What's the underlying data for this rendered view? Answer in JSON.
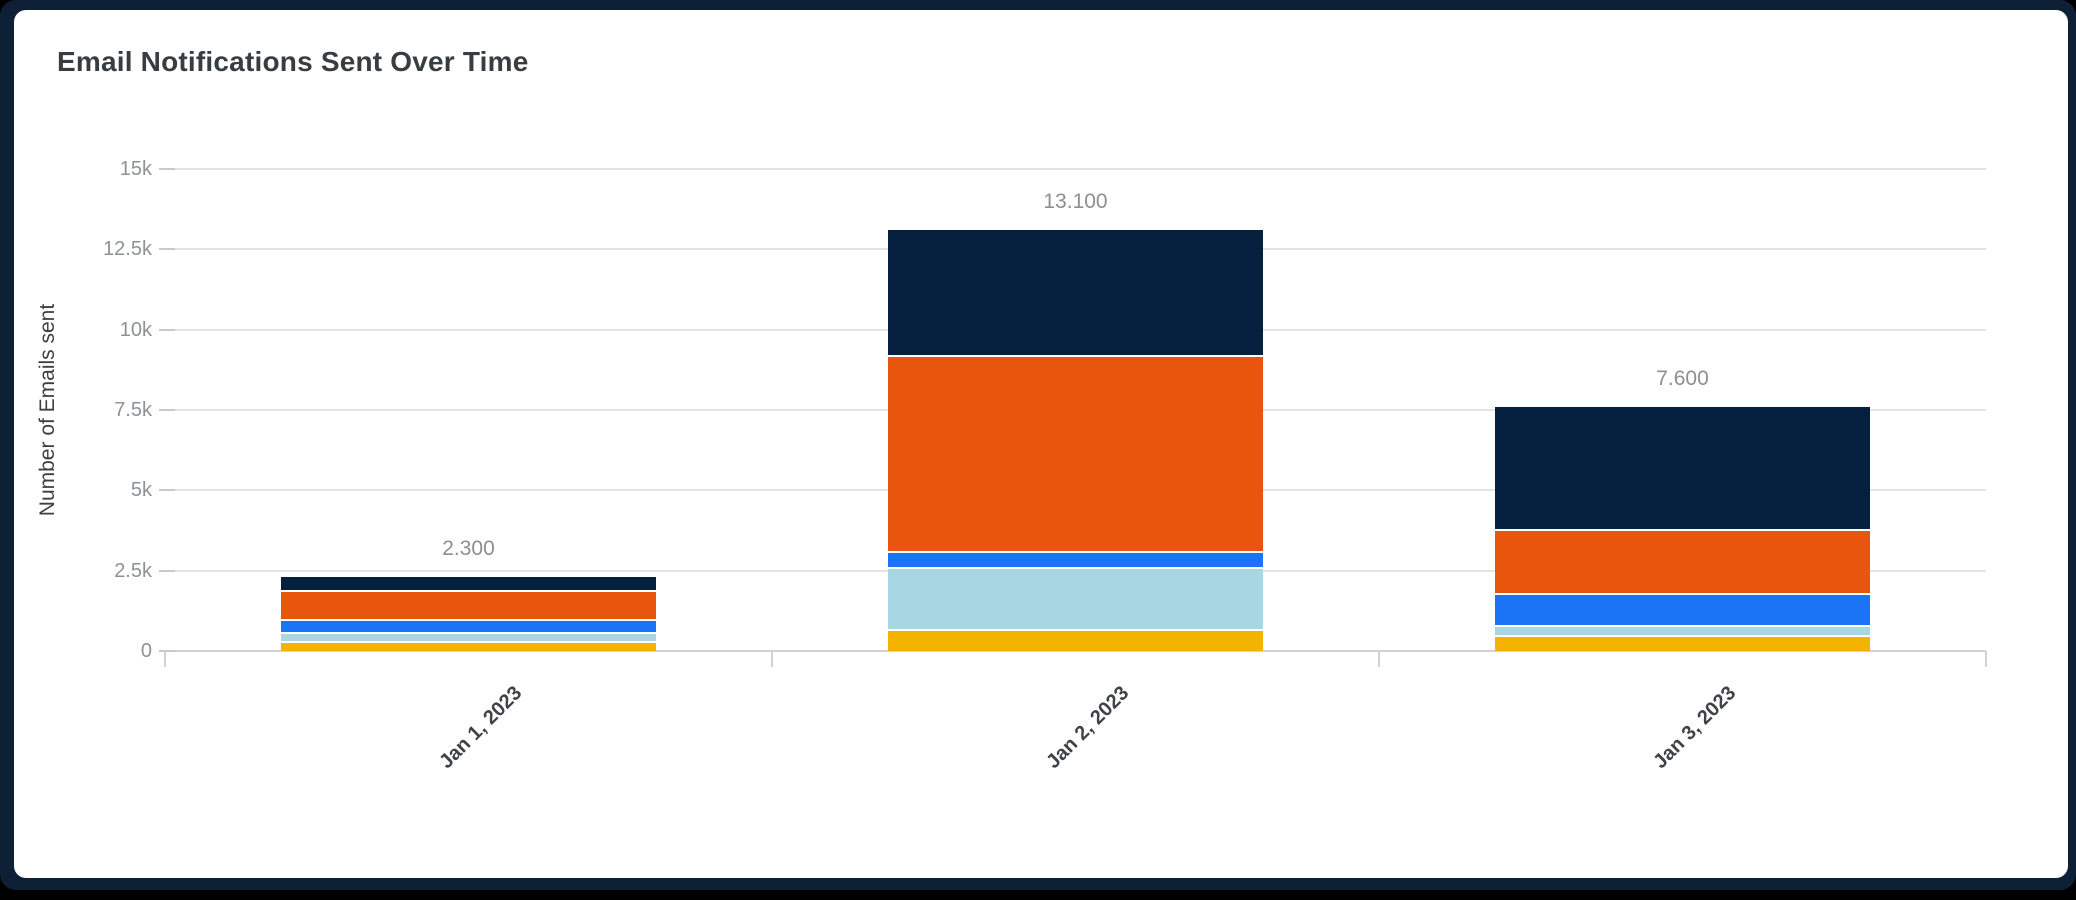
{
  "card": {
    "title": "Email Notifications Sent Over Time"
  },
  "chart_data": {
    "type": "bar",
    "stacked": true,
    "title": "Email Notifications Sent Over Time",
    "xlabel": "",
    "ylabel": "Number of Emails sent",
    "categories": [
      "Jan 1, 2023",
      "Jan 2, 2023",
      "Jan 3, 2023"
    ],
    "ylim": [
      0,
      15000
    ],
    "grid": true,
    "legend": "none",
    "y_ticks": [
      "0",
      "2.5k",
      "5k",
      "7.5k",
      "10k",
      "12.5k",
      "15k"
    ],
    "y_tick_values": [
      0,
      2500,
      5000,
      7500,
      10000,
      12500,
      15000
    ],
    "series": [
      {
        "name": "yellow",
        "color": "#f3b301",
        "values": [
          300,
          700,
          500
        ]
      },
      {
        "name": "light-blue",
        "color": "#a9d6e3",
        "values": [
          300,
          1900,
          300
        ]
      },
      {
        "name": "blue",
        "color": "#1b74f6",
        "values": [
          400,
          500,
          1000
        ]
      },
      {
        "name": "orange",
        "color": "#e8550c",
        "values": [
          900,
          6100,
          2000
        ]
      },
      {
        "name": "navy",
        "color": "#05203f",
        "values": [
          400,
          3900,
          3800
        ]
      }
    ],
    "totals": [
      2300,
      13100,
      7600
    ],
    "total_labels": [
      "2.300",
      "13.100",
      "7.600"
    ]
  },
  "colors": {
    "page_background": "#000000",
    "frame_background": "#0d2036",
    "card_background": "#ffffff",
    "gridline": "#e3e3e3",
    "axis_line": "#d2d2d2",
    "tick_label": "#8e9297",
    "total_label": "#8e8e8e",
    "title_text": "#383d42",
    "x_label_text": "#3f4246"
  }
}
